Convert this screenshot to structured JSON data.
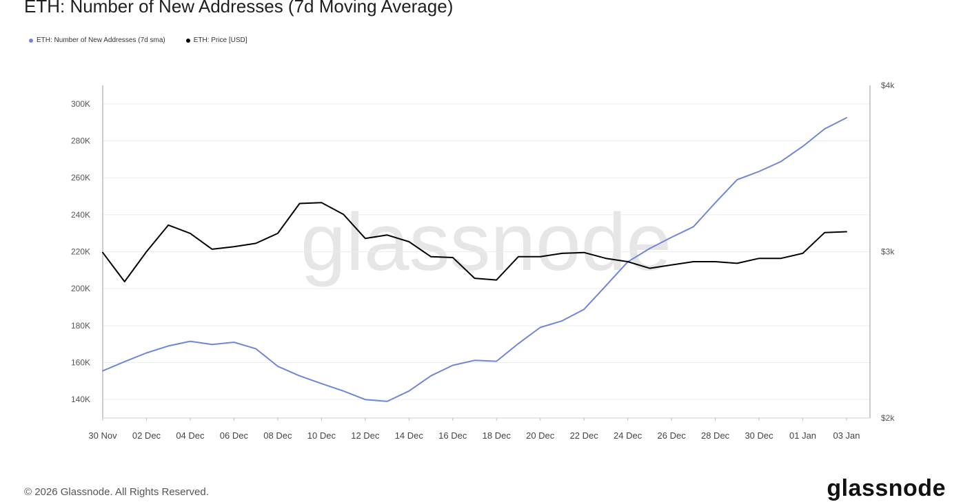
{
  "page": {
    "title": "ETH: Number of New Addresses (7d Moving Average)",
    "copyright": "© 2026 Glassnode. All Rights Reserved.",
    "brand": "glassnode",
    "watermark": "glassnode"
  },
  "colors": {
    "addresses": "#6f86d6",
    "price": "#000000",
    "grid": "#ececec",
    "axis": "#9a9a9a"
  },
  "chart_data": {
    "type": "line",
    "title": "ETH: Number of New Addresses (7d Moving Average)",
    "x_ticks": [
      "30 Nov",
      "02 Dec",
      "04 Dec",
      "06 Dec",
      "08 Dec",
      "10 Dec",
      "12 Dec",
      "14 Dec",
      "16 Dec",
      "18 Dec",
      "20 Dec",
      "22 Dec",
      "24 Dec",
      "26 Dec",
      "28 Dec",
      "30 Dec",
      "01 Jan",
      "03 Jan"
    ],
    "y_left": {
      "ticks": [
        "140K",
        "160K",
        "180K",
        "200K",
        "220K",
        "240K",
        "260K",
        "280K",
        "300K"
      ],
      "tick_values": [
        140000,
        160000,
        180000,
        200000,
        220000,
        240000,
        260000,
        280000,
        300000
      ],
      "range": [
        130000,
        310000
      ]
    },
    "y_right": {
      "ticks": [
        "$2k",
        "$3k",
        "$4k"
      ],
      "tick_values": [
        2000,
        3000,
        4000
      ],
      "range": [
        2000,
        4000
      ]
    },
    "legend_position": "top-left",
    "series": [
      {
        "name": "ETH: Number of New Addresses (7d sma)",
        "axis": "left",
        "color": "#6f86d6",
        "values": [
          155500,
          160500,
          165200,
          169000,
          171500,
          169800,
          171000,
          167500,
          158000,
          152800,
          148600,
          144600,
          140000,
          139000,
          144600,
          152800,
          158500,
          161200,
          160700,
          170300,
          179000,
          182600,
          188800,
          201600,
          214500,
          221700,
          227800,
          233500,
          246500,
          259000,
          263400,
          268800,
          277000,
          286500,
          292500
        ]
      },
      {
        "name": "ETH: Price [USD]",
        "axis": "right",
        "color": "#000000",
        "values": [
          2995,
          2820,
          3000,
          3160,
          3110,
          3015,
          3030,
          3050,
          3110,
          3290,
          3295,
          3225,
          3080,
          3100,
          3060,
          2970,
          2965,
          2840,
          2830,
          2970,
          2970,
          2990,
          2995,
          2960,
          2940,
          2900,
          2920,
          2940,
          2940,
          2930,
          2960,
          2960,
          2990,
          3115,
          3120
        ]
      }
    ]
  }
}
